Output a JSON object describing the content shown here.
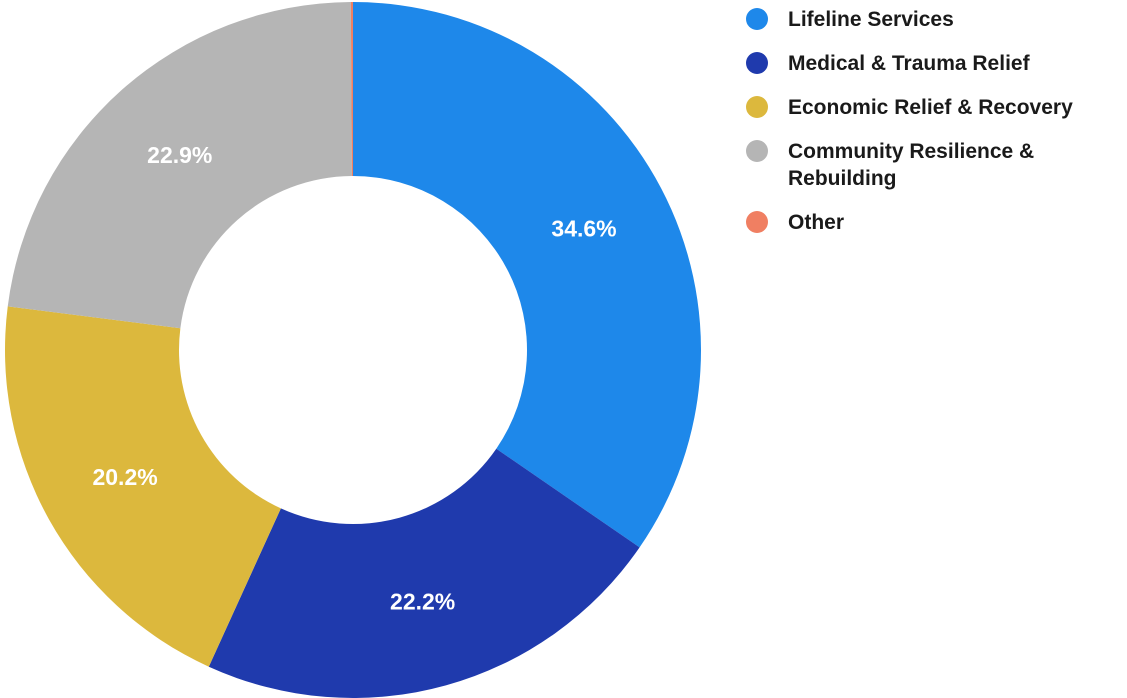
{
  "chart_data": {
    "type": "pie",
    "variant": "donut",
    "start_angle_deg": 0,
    "direction": "clockwise",
    "slices": [
      {
        "label": "Lifeline Services",
        "value": 34.6,
        "value_label": "34.6%",
        "color": "#1e88ea"
      },
      {
        "label": "Medical & Trauma Relief",
        "value": 22.2,
        "value_label": "22.2%",
        "color": "#1f3aad"
      },
      {
        "label": "Economic Relief & Recovery",
        "value": 20.2,
        "value_label": "20.2%",
        "color": "#dcb83d"
      },
      {
        "label": "Community Resilience & Rebuilding",
        "value": 22.9,
        "value_label": "22.9%",
        "color": "#b5b5b5"
      },
      {
        "label": "Other",
        "value": 0.1,
        "value_label": "",
        "color": "#f07f62"
      }
    ],
    "legend_position": "top-right"
  }
}
